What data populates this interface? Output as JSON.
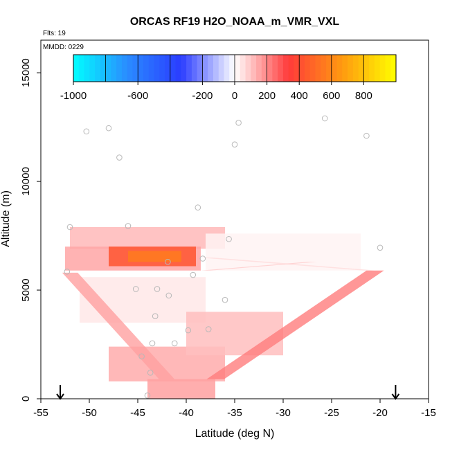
{
  "chart_data": {
    "type": "heatmap",
    "title": "ORCAS RF19 H2O_NOAA_m_VMR_VXL",
    "flights_label": "Flts: 19",
    "mmdd_label": "MMDD: 0229",
    "xlabel": "Latitude (deg N)",
    "ylabel": "Altitude (m)",
    "xlim": [
      -55,
      -15
    ],
    "ylim": [
      0,
      16500
    ],
    "x_ticks": [
      -55,
      -50,
      -45,
      -40,
      -35,
      -30,
      -25,
      -20,
      -15
    ],
    "y_ticks": [
      0,
      5000,
      10000,
      15000
    ],
    "colorbar": {
      "range": [
        -1000,
        1000
      ],
      "tick_values": [
        -1000,
        -600,
        -200,
        0,
        200,
        400,
        600,
        800
      ],
      "tick_labels": [
        "-1000",
        "-600",
        "-200",
        "0",
        "200",
        "400",
        "600",
        "800"
      ],
      "colors": [
        "#00ffff",
        "#2a8cff",
        "#2a3cff",
        "#ffffff",
        "#ff3a3a",
        "#ff9a10",
        "#ffff00"
      ]
    },
    "markers": {
      "description": "arrows at flight endpoints",
      "x": [
        -53,
        -18.4
      ]
    },
    "cells": [
      {
        "lat0": -52,
        "lat1": -36,
        "alt0": 6900,
        "alt1": 7900,
        "value": 120
      },
      {
        "lat0": -52.5,
        "lat1": -38.5,
        "alt0": 5900,
        "alt1": 7000,
        "value": 150
      },
      {
        "lat0": -48,
        "lat1": -39,
        "alt0": 6100,
        "alt1": 7000,
        "value": 420
      },
      {
        "lat0": -46,
        "lat1": -40.5,
        "alt0": 6300,
        "alt1": 6800,
        "value": 560
      },
      {
        "lat0": -38,
        "lat1": -22,
        "alt0": 5900,
        "alt1": 7600,
        "value": 20
      },
      {
        "lat0": -51,
        "lat1": -38,
        "alt0": 3500,
        "alt1": 5600,
        "value": 40
      },
      {
        "lat0": -48,
        "lat1": -36,
        "alt0": 800,
        "alt1": 2400,
        "value": 140
      },
      {
        "lat0": -44,
        "lat1": -37,
        "alt0": 0,
        "alt1": 900,
        "value": 160
      },
      {
        "lat0": -40,
        "lat1": -30,
        "alt0": 2000,
        "alt1": 4000,
        "value": 110
      }
    ],
    "bands": [
      {
        "lat_a": -52,
        "alt_a": 5800,
        "lat_b": -42,
        "alt_b": 900,
        "width_deg": 1.6,
        "value": 160
      },
      {
        "lat_a": -37,
        "alt_a": 900,
        "lat_b": -20.5,
        "alt_b": 5900,
        "width_deg": 1.8,
        "value": 220
      },
      {
        "lat_a": -38,
        "alt_a": 6500,
        "lat_b": -21,
        "alt_b": 5900,
        "width_deg": 1.4,
        "value": 60
      },
      {
        "lat_a": -38,
        "alt_a": 5900,
        "lat_b": -27,
        "alt_b": 6300,
        "width_deg": 1.0,
        "value": 90
      }
    ],
    "points": [
      {
        "lat": -50.3,
        "alt": 12300
      },
      {
        "lat": -48.0,
        "alt": 12450
      },
      {
        "lat": -46.9,
        "alt": 11100
      },
      {
        "lat": -34.6,
        "alt": 12700
      },
      {
        "lat": -35.0,
        "alt": 11700
      },
      {
        "lat": -25.7,
        "alt": 12900
      },
      {
        "lat": -21.4,
        "alt": 12100
      },
      {
        "lat": -52.0,
        "alt": 7900
      },
      {
        "lat": -46.0,
        "alt": 7950
      },
      {
        "lat": -38.8,
        "alt": 8800
      },
      {
        "lat": -35.6,
        "alt": 7350
      },
      {
        "lat": -20.0,
        "alt": 6950
      },
      {
        "lat": -52.3,
        "alt": 5850
      },
      {
        "lat": -38.3,
        "alt": 6450
      },
      {
        "lat": -41.9,
        "alt": 6300
      },
      {
        "lat": -39.3,
        "alt": 5700
      },
      {
        "lat": -45.2,
        "alt": 5050
      },
      {
        "lat": -43.0,
        "alt": 5050
      },
      {
        "lat": -41.8,
        "alt": 4750
      },
      {
        "lat": -36.0,
        "alt": 4550
      },
      {
        "lat": -43.2,
        "alt": 3800
      },
      {
        "lat": -39.8,
        "alt": 3150
      },
      {
        "lat": -37.7,
        "alt": 3200
      },
      {
        "lat": -43.5,
        "alt": 2550
      },
      {
        "lat": -41.2,
        "alt": 2550
      },
      {
        "lat": -44.6,
        "alt": 1950
      },
      {
        "lat": -43.7,
        "alt": 1200
      },
      {
        "lat": -44.0,
        "alt": 150
      }
    ]
  }
}
